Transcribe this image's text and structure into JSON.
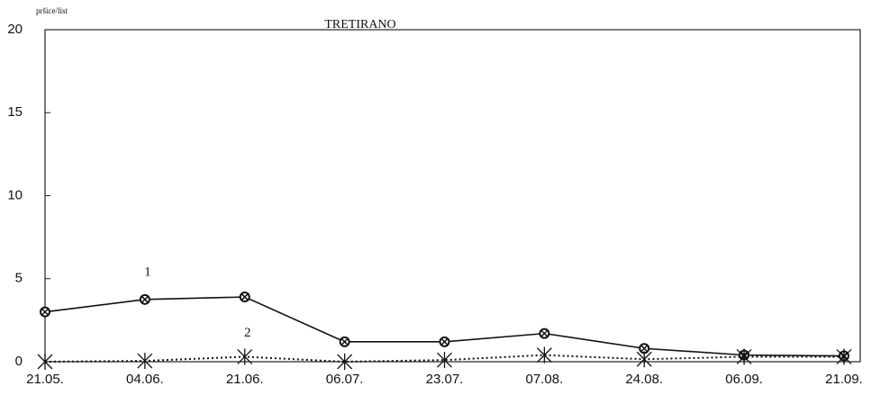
{
  "chart_data": {
    "type": "line",
    "title": "TRETIRANO",
    "y_label": "pršice/list",
    "categories": [
      "21.05.",
      "04.06.",
      "21.06.",
      "06.07.",
      "23.07.",
      "07.08.",
      "24.08.",
      "06.09.",
      "21.09."
    ],
    "series": [
      {
        "color": "#111111",
        "linestyle": "solid",
        "marker": "circle",
        "values": [
          3.0,
          3.75,
          3.9,
          1.2,
          1.2,
          1.7,
          0.8,
          0.4,
          0.35
        ]
      },
      {
        "color": "#111111",
        "linestyle": "dotted",
        "marker": "asterisk",
        "values": [
          0,
          0.05,
          0.3,
          0,
          0.1,
          0.4,
          0.15,
          0.3,
          0.3
        ]
      }
    ],
    "annotations": [
      "1",
      "2"
    ],
    "ylim": [
      0,
      20
    ],
    "yticks": [
      0,
      5,
      10,
      15,
      20
    ],
    "grid": false
  }
}
